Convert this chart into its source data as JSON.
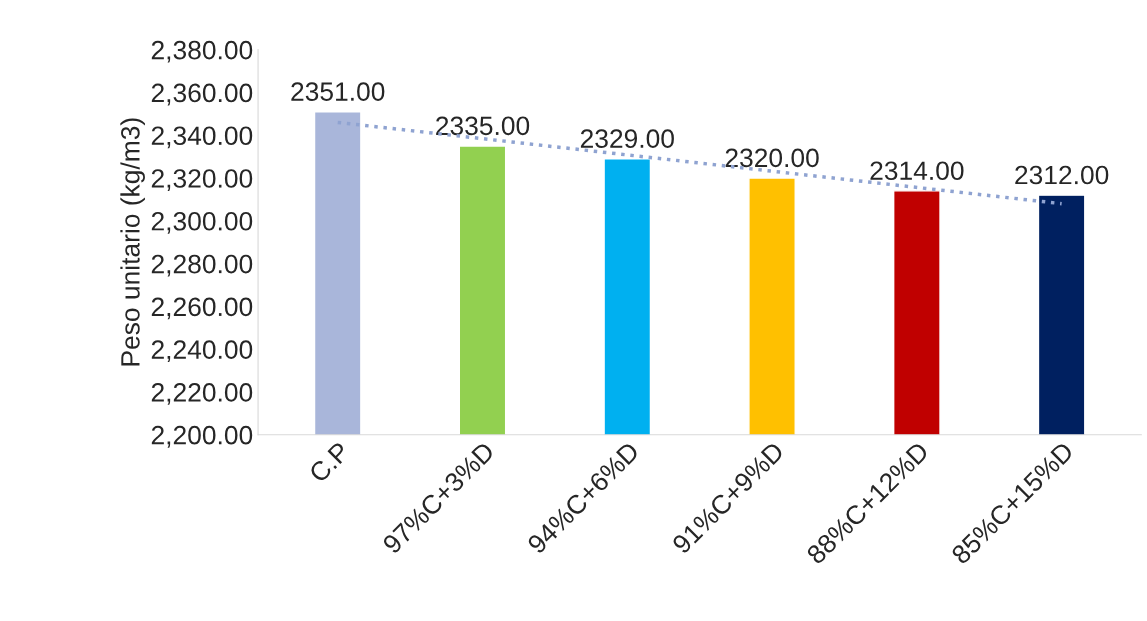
{
  "chart_data": {
    "type": "bar",
    "ylabel": "Peso unitario (kg/m3)",
    "categories": [
      "C.P",
      "97%C+3%D",
      "94%C+6%D",
      "91%C+9%D",
      "88%C+12%D",
      "85%C+15%D"
    ],
    "series": [
      {
        "colors": [
          "#a9b6da",
          "#92d050",
          "#00b0f0",
          "#ffc000",
          "#c00000",
          "#002060"
        ],
        "values": [
          2351,
          2335,
          2329,
          2320,
          2314,
          2312
        ],
        "value_labels": [
          "2351.00",
          "2335.00",
          "2329.00",
          "2320.00",
          "2314.00",
          "2312.00"
        ]
      },
      {
        "type": "line",
        "color": "#8fa3d1",
        "line_style": "dotted",
        "x": [
          "C.P",
          "85%C+15%D"
        ],
        "values": [
          2346,
          2308
        ]
      }
    ],
    "ylim": [
      2200,
      2380
    ],
    "yticks": [
      {
        "value": 2200,
        "label": "2,200.00"
      },
      {
        "value": 2220,
        "label": "2,220.00"
      },
      {
        "value": 2240,
        "label": "2,240.00"
      },
      {
        "value": 2260,
        "label": "2,260.00"
      },
      {
        "value": 2280,
        "label": "2,280.00"
      },
      {
        "value": 2300,
        "label": "2,300.00"
      },
      {
        "value": 2320,
        "label": "2,320.00"
      },
      {
        "value": 2340,
        "label": "2,340.00"
      },
      {
        "value": 2360,
        "label": "2,360.00"
      },
      {
        "value": 2380,
        "label": "2,380.00"
      }
    ],
    "grid": false
  }
}
